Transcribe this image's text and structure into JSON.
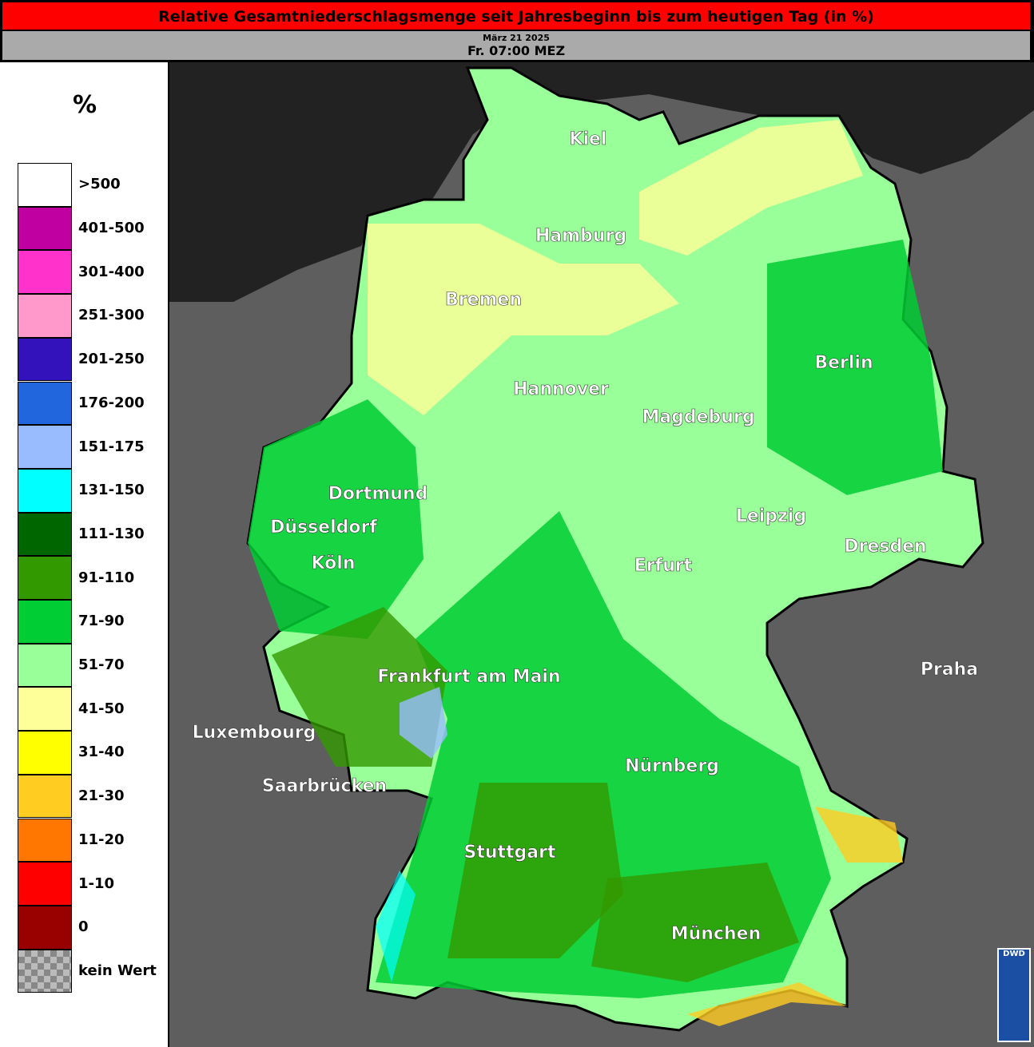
{
  "header": {
    "title": "Relative Gesamtniederschlagsmenge seit Jahresbeginn bis zum heutigen Tag (in %)",
    "date": "März 21 2025",
    "time": "Fr. 07:00 MEZ"
  },
  "legend": {
    "unit": "%",
    "items": [
      {
        "label": ">500",
        "color": "#ffffff"
      },
      {
        "label": "401-500",
        "color": "#c000a0"
      },
      {
        "label": "301-400",
        "color": "#ff33cc"
      },
      {
        "label": "251-300",
        "color": "#ff99cc"
      },
      {
        "label": "201-250",
        "color": "#3311bb"
      },
      {
        "label": "176-200",
        "color": "#2266dd"
      },
      {
        "label": "151-175",
        "color": "#99bbff"
      },
      {
        "label": "131-150",
        "color": "#00ffff"
      },
      {
        "label": "111-130",
        "color": "#006600"
      },
      {
        "label": "91-110",
        "color": "#339900"
      },
      {
        "label": "71-90",
        "color": "#00cc33"
      },
      {
        "label": "51-70",
        "color": "#99ff99"
      },
      {
        "label": "41-50",
        "color": "#ffff99"
      },
      {
        "label": "31-40",
        "color": "#ffff00"
      },
      {
        "label": "21-30",
        "color": "#ffcc22"
      },
      {
        "label": "11-20",
        "color": "#ff7700"
      },
      {
        "label": "1-10",
        "color": "#ff0000"
      },
      {
        "label": "0",
        "color": "#990000"
      },
      {
        "label": "kein Wert",
        "color": "checker"
      }
    ]
  },
  "cities": [
    "Kiel",
    "Hamburg",
    "Bremen",
    "Hannover",
    "Berlin",
    "Magdeburg",
    "Dortmund",
    "Düsseldorf",
    "Köln",
    "Leipzig",
    "Dresden",
    "Erfurt",
    "Frankfurt am Main",
    "Praha",
    "Luxembourg",
    "Saarbrücken",
    "Nürnberg",
    "Stuttgart",
    "München"
  ],
  "logo": "DWD"
}
